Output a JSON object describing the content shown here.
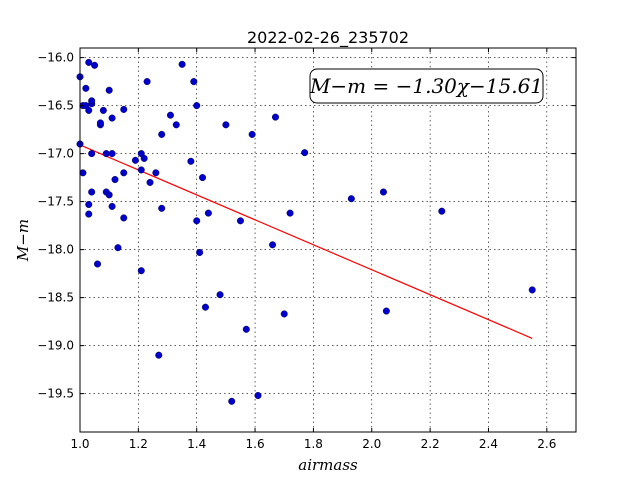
{
  "chart_data": {
    "type": "scatter",
    "title": "2022-02-26_235702",
    "xlabel": "airmass",
    "ylabel": "M−m",
    "xlim": [
      1.0,
      2.7
    ],
    "ylim": [
      -19.9,
      -15.9
    ],
    "y_inverted": true,
    "grid": true,
    "x_ticks": [
      "1.0",
      "1.2",
      "1.4",
      "1.6",
      "1.8",
      "2.0",
      "2.2",
      "2.4",
      "2.6"
    ],
    "x_tick_values": [
      1.0,
      1.2,
      1.4,
      1.6,
      1.8,
      2.0,
      2.2,
      2.4,
      2.6
    ],
    "y_ticks": [
      "−16.0",
      "−16.5",
      "−17.0",
      "−17.5",
      "−18.0",
      "−18.5",
      "−19.0",
      "−19.5"
    ],
    "y_tick_values": [
      -16.0,
      -16.5,
      -17.0,
      -17.5,
      -18.0,
      -18.5,
      -19.0,
      -19.5
    ],
    "annotation": "M−m = −1.30χ−15.61",
    "marker_color": "#0000cc",
    "fit_color": "#ff0000",
    "fit": {
      "slope": -1.3,
      "intercept": -15.61,
      "x_range": [
        1.0,
        2.55
      ]
    },
    "points": [
      [
        1.0,
        -16.2
      ],
      [
        1.0,
        -16.9
      ],
      [
        1.01,
        -16.5
      ],
      [
        1.01,
        -17.2
      ],
      [
        1.02,
        -16.32
      ],
      [
        1.02,
        -16.5
      ],
      [
        1.03,
        -16.05
      ],
      [
        1.03,
        -16.55
      ],
      [
        1.03,
        -17.53
      ],
      [
        1.03,
        -17.63
      ],
      [
        1.04,
        -16.48
      ],
      [
        1.04,
        -16.45
      ],
      [
        1.04,
        -17.0
      ],
      [
        1.04,
        -17.4
      ],
      [
        1.05,
        -16.08
      ],
      [
        1.06,
        -18.15
      ],
      [
        1.07,
        -16.7
      ],
      [
        1.07,
        -16.68
      ],
      [
        1.08,
        -16.55
      ],
      [
        1.09,
        -17.0
      ],
      [
        1.09,
        -17.4
      ],
      [
        1.1,
        -16.34
      ],
      [
        1.1,
        -17.43
      ],
      [
        1.11,
        -16.63
      ],
      [
        1.11,
        -17.0
      ],
      [
        1.11,
        -17.55
      ],
      [
        1.12,
        -17.27
      ],
      [
        1.13,
        -17.98
      ],
      [
        1.15,
        -16.54
      ],
      [
        1.15,
        -17.2
      ],
      [
        1.15,
        -17.67
      ],
      [
        1.19,
        -17.07
      ],
      [
        1.21,
        -17.0
      ],
      [
        1.21,
        -17.17
      ],
      [
        1.21,
        -18.22
      ],
      [
        1.22,
        -17.05
      ],
      [
        1.23,
        -16.25
      ],
      [
        1.24,
        -17.3
      ],
      [
        1.26,
        -17.2
      ],
      [
        1.27,
        -19.1
      ],
      [
        1.28,
        -16.8
      ],
      [
        1.28,
        -17.57
      ],
      [
        1.31,
        -16.6
      ],
      [
        1.33,
        -16.7
      ],
      [
        1.35,
        -16.07
      ],
      [
        1.38,
        -17.08
      ],
      [
        1.39,
        -16.25
      ],
      [
        1.4,
        -16.5
      ],
      [
        1.4,
        -17.7
      ],
      [
        1.41,
        -18.03
      ],
      [
        1.42,
        -17.25
      ],
      [
        1.43,
        -18.6
      ],
      [
        1.44,
        -17.62
      ],
      [
        1.48,
        -18.47
      ],
      [
        1.5,
        -16.7
      ],
      [
        1.52,
        -19.58
      ],
      [
        1.55,
        -17.7
      ],
      [
        1.57,
        -18.83
      ],
      [
        1.59,
        -16.8
      ],
      [
        1.61,
        -19.52
      ],
      [
        1.66,
        -17.95
      ],
      [
        1.67,
        -16.62
      ],
      [
        1.7,
        -18.67
      ],
      [
        1.72,
        -17.62
      ],
      [
        1.77,
        -16.99
      ],
      [
        1.93,
        -17.47
      ],
      [
        2.04,
        -17.4
      ],
      [
        2.05,
        -18.64
      ],
      [
        2.24,
        -17.6
      ],
      [
        2.55,
        -18.42
      ]
    ]
  }
}
